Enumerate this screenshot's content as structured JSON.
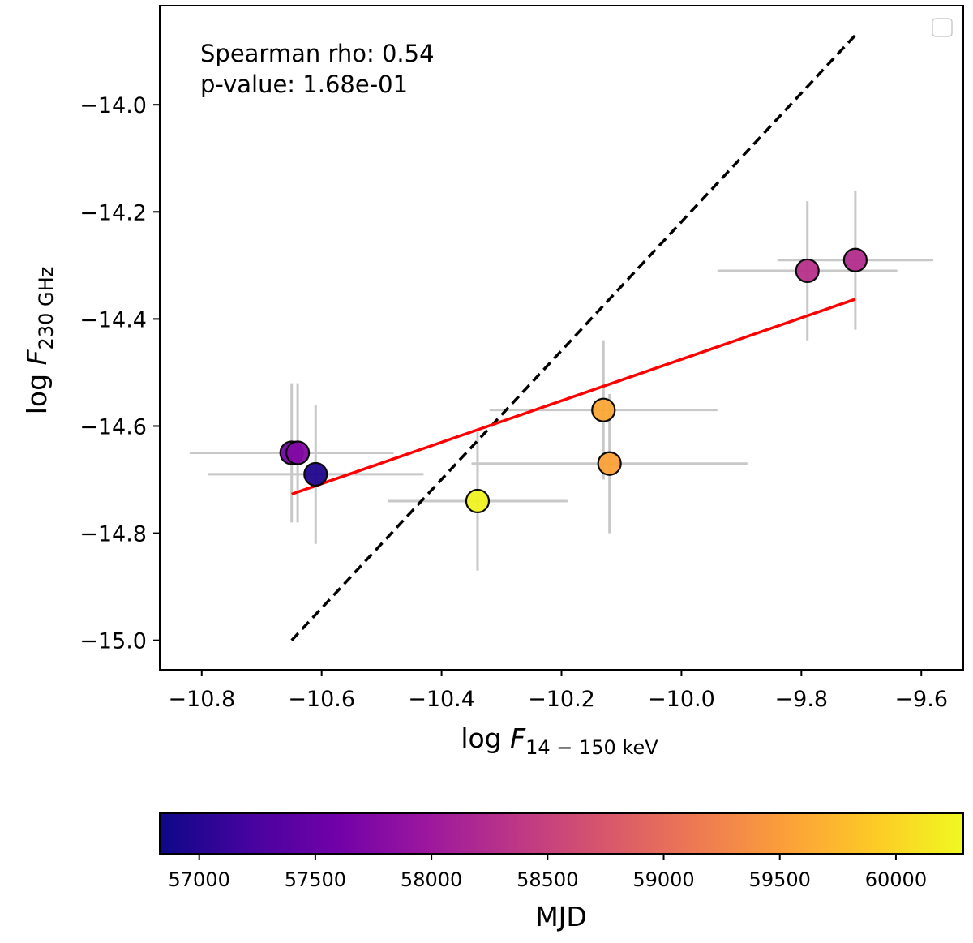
{
  "chart_data": {
    "type": "scatter",
    "xlabel_prefix": "log ",
    "xlabel_var": "F",
    "xlabel_sub": "14 − 150 keV",
    "ylabel_prefix": "log ",
    "ylabel_var": "F",
    "ylabel_sub": "230 GHz",
    "xlim": [
      -10.87,
      -9.53
    ],
    "ylim": [
      -15.055,
      -13.815
    ],
    "x_ticks": [
      -10.8,
      -10.6,
      -10.4,
      -10.2,
      -10.0,
      -9.8,
      -9.6
    ],
    "x_tick_labels": [
      "−10.8",
      "−10.6",
      "−10.4",
      "−10.2",
      "−10.0",
      "−9.8",
      "−9.6"
    ],
    "y_ticks": [
      -15.0,
      -14.8,
      -14.6,
      -14.4,
      -14.2,
      -14.0
    ],
    "y_tick_labels": [
      "−15.0",
      "−14.8",
      "−14.6",
      "−14.4",
      "−14.2",
      "−14.0"
    ],
    "annotation_lines": [
      "Spearman rho: 0.54",
      "p-value: 1.68e-01"
    ],
    "legend": "top-right (empty)",
    "points": [
      {
        "x": -10.65,
        "y": -14.65,
        "xerr": 0.17,
        "yerr": 0.13,
        "mjd": 57650
      },
      {
        "x": -10.64,
        "y": -14.65,
        "xerr": 0.16,
        "yerr": 0.13,
        "mjd": 57750
      },
      {
        "x": -10.61,
        "y": -14.69,
        "xerr": 0.18,
        "yerr": 0.13,
        "mjd": 56950
      },
      {
        "x": -10.34,
        "y": -14.74,
        "xerr": 0.15,
        "yerr": 0.13,
        "mjd": 60250
      },
      {
        "x": -10.13,
        "y": -14.57,
        "xerr": 0.19,
        "yerr": 0.13,
        "mjd": 59600
      },
      {
        "x": -10.12,
        "y": -14.67,
        "xerr": 0.23,
        "yerr": 0.13,
        "mjd": 59550
      },
      {
        "x": -9.79,
        "y": -14.31,
        "xerr": 0.15,
        "yerr": 0.13,
        "mjd": 58300
      },
      {
        "x": -9.71,
        "y": -14.29,
        "xerr": 0.13,
        "yerr": 0.13,
        "mjd": 58250
      }
    ],
    "fit_line": {
      "x": [
        -10.65,
        -9.71
      ],
      "y": [
        -14.727,
        -14.363
      ],
      "color": "#ff0000"
    },
    "one_to_one_line": {
      "x": [
        -10.65,
        -9.71
      ],
      "y": [
        -15.0,
        -13.87
      ],
      "color": "#000000"
    },
    "colorbar": {
      "label": "MJD",
      "range": [
        56830,
        60290
      ],
      "ticks": [
        57000,
        57500,
        58000,
        58500,
        59000,
        59500,
        60000
      ],
      "tick_labels": [
        "57000",
        "57500",
        "58000",
        "58500",
        "59000",
        "59500",
        "60000"
      ],
      "colormap": "plasma",
      "stops": [
        "#0d0887",
        "#46039f",
        "#7201a8",
        "#9c179e",
        "#bd3786",
        "#d8576b",
        "#ed7953",
        "#fb9f3a",
        "#fdca26",
        "#f0f921"
      ]
    },
    "errorbar_color": "#c8c8c8"
  }
}
